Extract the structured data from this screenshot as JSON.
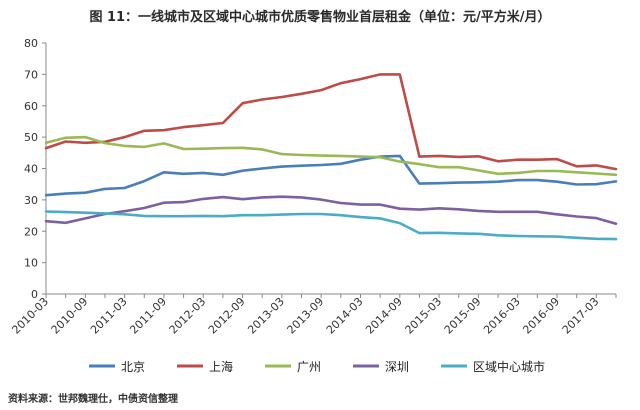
{
  "page": {
    "title": "图 11：一线城市及区域中心城市优质零售物业首层租金（单位：元/平方米/月）",
    "source": "资料来源：世邦魏理仕，中债资信整理"
  },
  "chart_data": {
    "type": "line",
    "title": "图 11：一线城市及区域中心城市优质零售物业首层租金（单位：元/平方米/月）",
    "xlabel": "",
    "ylabel": "",
    "ylim": [
      0,
      80
    ],
    "yticks": [
      0,
      10,
      20,
      30,
      40,
      50,
      60,
      70,
      80
    ],
    "grid": false,
    "legend_position": "bottom",
    "tick_labels": [
      "2010-03",
      "2010-09",
      "2011-03",
      "2011-09",
      "2012-03",
      "2012-09",
      "2013-03",
      "2013-09",
      "2014-03",
      "2014-09",
      "2015-03",
      "2015-09",
      "2016-03",
      "2016-09",
      "2017-03"
    ],
    "x": [
      "2010-03",
      "2010-06",
      "2010-09",
      "2010-12",
      "2011-03",
      "2011-06",
      "2011-09",
      "2011-12",
      "2012-03",
      "2012-06",
      "2012-09",
      "2012-12",
      "2013-03",
      "2013-06",
      "2013-09",
      "2013-12",
      "2014-03",
      "2014-06",
      "2014-09",
      "2014-12",
      "2015-03",
      "2015-06",
      "2015-09",
      "2015-12",
      "2016-03",
      "2016-06",
      "2016-09",
      "2016-12",
      "2017-03",
      "2017-06"
    ],
    "series": [
      {
        "name": "北京",
        "color": "#4a7ebb",
        "values": [
          31.5,
          32,
          32.3,
          33.5,
          33.8,
          36,
          38.8,
          38.3,
          38.6,
          38,
          39.3,
          40,
          40.6,
          40.9,
          41.1,
          41.5,
          42.8,
          43.8,
          44,
          35.2,
          35.3,
          35.5,
          35.6,
          35.8,
          36.3,
          36.3,
          35.8,
          34.9,
          35.0,
          35.9
        ]
      },
      {
        "name": "上海",
        "color": "#be4b48",
        "values": [
          46.5,
          48.6,
          48.2,
          48.5,
          50,
          52,
          52.2,
          53.2,
          53.8,
          54.5,
          60.8,
          62,
          62.8,
          63.8,
          65,
          67.2,
          68.5,
          70,
          70,
          43.8,
          44,
          43.7,
          43.9,
          42.3,
          42.8,
          42.8,
          43,
          40.7,
          41,
          39.8
        ]
      },
      {
        "name": "广州",
        "color": "#98b954",
        "values": [
          48.2,
          49.8,
          50,
          48.1,
          47.2,
          46.9,
          48,
          46.2,
          46.3,
          46.5,
          46.6,
          46.1,
          44.6,
          44.3,
          44.1,
          44.0,
          43.8,
          43.6,
          42.2,
          41.4,
          40.4,
          40.4,
          39.4,
          38.3,
          38.6,
          39.2,
          39.2,
          38.8,
          38.4,
          38.0
        ]
      },
      {
        "name": "深圳",
        "color": "#7d60a0",
        "values": [
          23.2,
          22.7,
          24.1,
          25.5,
          26.4,
          27.4,
          29.1,
          29.3,
          30.3,
          30.9,
          30.2,
          30.8,
          31,
          30.8,
          30.1,
          29,
          28.5,
          28.5,
          27.2,
          26.9,
          27.3,
          27,
          26.5,
          26.2,
          26.2,
          26.2,
          25.4,
          24.7,
          24.2,
          22.4
        ]
      },
      {
        "name": "区域中心城市",
        "color": "#4bacc6",
        "values": [
          26.3,
          26.1,
          25.9,
          25.7,
          25.4,
          24.9,
          24.8,
          24.8,
          24.9,
          24.8,
          25.1,
          25.1,
          25.3,
          25.5,
          25.5,
          25.1,
          24.5,
          24.1,
          22.6,
          19.4,
          19.5,
          19.3,
          19.2,
          18.7,
          18.5,
          18.4,
          18.3,
          17.9,
          17.6,
          17.5
        ]
      }
    ]
  }
}
